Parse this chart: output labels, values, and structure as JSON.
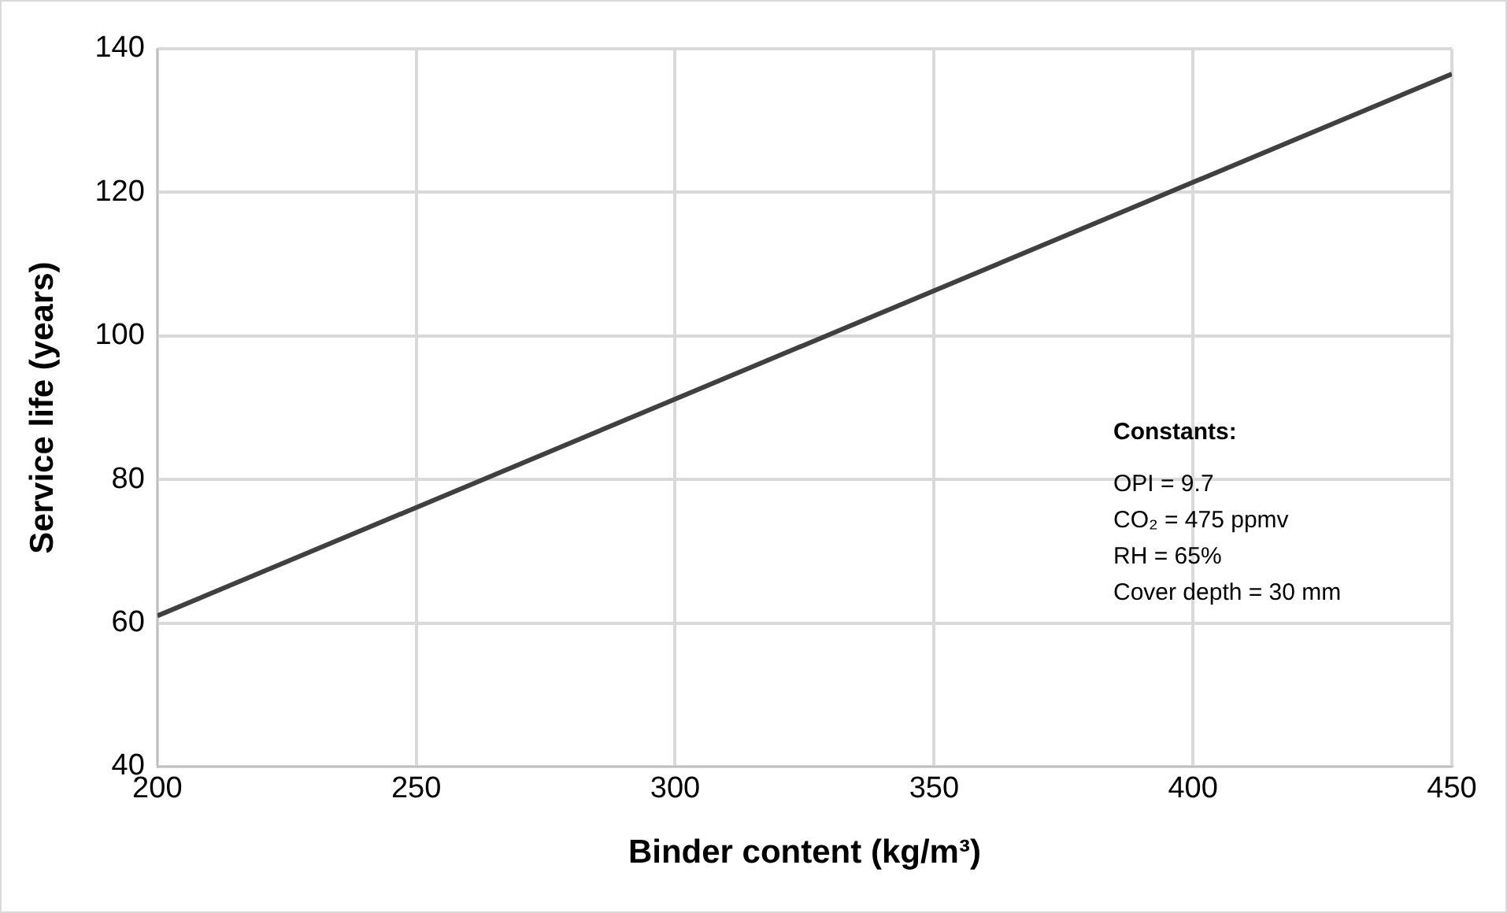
{
  "chart_data": {
    "type": "line",
    "xlabel": "Binder content (kg/m³)",
    "ylabel": "Service life (years)",
    "x": [
      200,
      450
    ],
    "series": [
      {
        "color": "#404040",
        "values": [
          61,
          136.5
        ]
      }
    ],
    "xlim": [
      200,
      450
    ],
    "xticks": [
      200,
      250,
      300,
      350,
      400,
      450
    ],
    "ylim": [
      40,
      140
    ],
    "yticks": [
      40,
      60,
      80,
      100,
      120,
      140
    ],
    "grid": true,
    "legend": false,
    "marker": "none",
    "line_style": "solid",
    "annotations": [
      "Constants:",
      "OPI = 9.7",
      "CO₂ = 475 ppmv",
      "RH = 65%",
      "Cover depth = 30 mm"
    ]
  }
}
